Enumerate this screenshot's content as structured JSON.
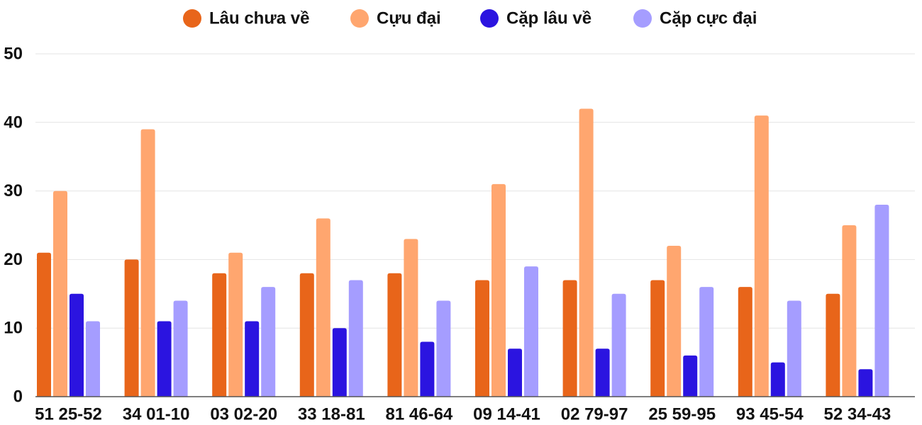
{
  "chart_data": {
    "type": "bar",
    "categories": [
      "51 25-52",
      "34 01-10",
      "03 02-20",
      "33 18-81",
      "81 46-64",
      "09 14-41",
      "02 79-97",
      "25 59-95",
      "93 45-54",
      "52 34-43"
    ],
    "series": [
      {
        "name": "Lâu chưa về",
        "color": "#e8651a",
        "values": [
          21,
          20,
          18,
          18,
          18,
          17,
          17,
          17,
          16,
          15
        ]
      },
      {
        "name": "Cựu đại",
        "color": "#ffa66f",
        "values": [
          30,
          39,
          21,
          26,
          23,
          31,
          42,
          22,
          41,
          25
        ]
      },
      {
        "name": "Cặp lâu về",
        "color": "#2b14e0",
        "values": [
          15,
          11,
          11,
          10,
          8,
          7,
          7,
          6,
          5,
          4
        ]
      },
      {
        "name": "Cặp cực đại",
        "color": "#a59dff",
        "values": [
          11,
          14,
          16,
          17,
          14,
          19,
          15,
          16,
          14,
          28
        ]
      }
    ],
    "ylim": [
      0,
      50
    ],
    "yticks": [
      "0",
      "10",
      "20",
      "30",
      "40",
      "50"
    ],
    "grid": true,
    "legend_position": "top",
    "title": "",
    "xlabel": "",
    "ylabel": ""
  }
}
